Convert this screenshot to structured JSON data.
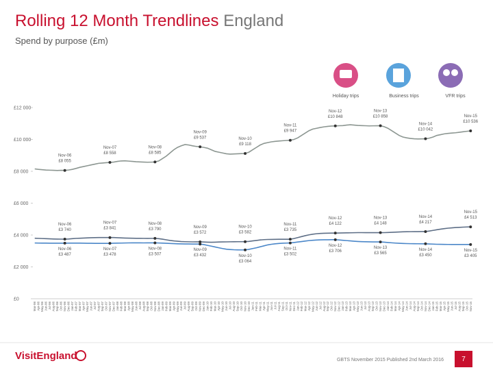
{
  "chart_data": {
    "type": "line",
    "title": "Rolling 12 Month Trendlines",
    "region": "England",
    "subtitle": "Spend by purpose (£m)",
    "categories": [
      "Mar-06",
      "Apr-06",
      "May-06",
      "Jun-06",
      "Jul-06",
      "Aug-06",
      "Sep-06",
      "Oct-06",
      "Nov-06",
      "Dec-06",
      "Jan-07",
      "Feb-07",
      "Mar-07",
      "Apr-07",
      "May-07",
      "Jun-07",
      "Jul-07",
      "Aug-07",
      "Sep-07",
      "Oct-07",
      "Nov-07",
      "Dec-07",
      "Jan-08",
      "Feb-08",
      "Mar-08",
      "Apr-08",
      "May-08",
      "Jun-08",
      "Jul-08",
      "Aug-08",
      "Sep-08",
      "Oct-08",
      "Nov-08",
      "Dec-08",
      "Jan-09",
      "Feb-09",
      "Mar-09",
      "Apr-09",
      "May-09",
      "Jun-09",
      "Jul-09",
      "Aug-09",
      "Sep-09",
      "Oct-09",
      "Nov-09",
      "Dec-09",
      "Jan-10",
      "Feb-10",
      "Mar-10",
      "Apr-10",
      "May-10",
      "Jun-10",
      "Jul-10",
      "Aug-10",
      "Sep-10",
      "Oct-10",
      "Nov-10",
      "Dec-10",
      "Jan-11",
      "Feb-11",
      "Mar-11",
      "Apr-11",
      "May-11",
      "Jun-11",
      "Jul-11",
      "Aug-11",
      "Sep-11",
      "Oct-11",
      "Nov-11",
      "Dec-11",
      "Jan-12",
      "Feb-12",
      "Mar-12",
      "Apr-12",
      "May-12",
      "Jun-12",
      "Jul-12",
      "Aug-12",
      "Sep-12",
      "Oct-12",
      "Nov-12",
      "Dec-12",
      "Jan-13",
      "Feb-13",
      "Mar-13",
      "Apr-13",
      "May-13",
      "Jun-13",
      "Jul-13",
      "Aug-13",
      "Sep-13",
      "Oct-13",
      "Nov-13",
      "Dec-13",
      "Jan-14",
      "Feb-14",
      "Mar-14",
      "Apr-14",
      "May-14",
      "Jun-14",
      "Jul-14",
      "Aug-14",
      "Sep-14",
      "Oct-14",
      "Nov-14",
      "Dec-14",
      "Jan-15",
      "Feb-15",
      "Mar-15",
      "Apr-15",
      "May-15",
      "Jun-15",
      "Jul-15",
      "Aug-15",
      "Sep-15",
      "Oct-15",
      "Nov-15"
    ],
    "series": [
      {
        "name": "Holiday trips",
        "color": "#8c9691",
        "label_position": "above",
        "values": [
          8150,
          8120,
          8100,
          8080,
          8070,
          8060,
          8050,
          8060,
          8055,
          8080,
          8120,
          8180,
          8250,
          8300,
          8350,
          8400,
          8450,
          8500,
          8520,
          8540,
          8558,
          8580,
          8620,
          8650,
          8660,
          8640,
          8620,
          8600,
          8590,
          8580,
          8570,
          8575,
          8585,
          8650,
          8800,
          8950,
          9150,
          9350,
          9500,
          9600,
          9680,
          9650,
          9600,
          9560,
          9537,
          9500,
          9450,
          9350,
          9250,
          9200,
          9150,
          9100,
          9080,
          9090,
          9100,
          9110,
          9118,
          9200,
          9350,
          9500,
          9650,
          9750,
          9800,
          9850,
          9880,
          9900,
          9920,
          9935,
          9947,
          10000,
          10100,
          10250,
          10400,
          10550,
          10650,
          10700,
          10750,
          10790,
          10820,
          10840,
          10848,
          10860,
          10870,
          10900,
          10920,
          10900,
          10880,
          10870,
          10860,
          10850,
          10855,
          10860,
          10858,
          10800,
          10700,
          10550,
          10400,
          10250,
          10150,
          10100,
          10060,
          10040,
          10030,
          10035,
          10042,
          10080,
          10150,
          10250,
          10300,
          10350,
          10380,
          10400,
          10420,
          10450,
          10480,
          10510,
          10536
        ],
        "annotations": [
          {
            "x": "Nov-06",
            "value": 8055,
            "value_label": "£8 055"
          },
          {
            "x": "Nov-07",
            "value": 8558,
            "value_label": "£8 558"
          },
          {
            "x": "Nov-08",
            "value": 8585,
            "value_label": "£8 585"
          },
          {
            "x": "Nov-09",
            "value": 9537,
            "value_label": "£9 537"
          },
          {
            "x": "Nov-10",
            "value": 9118,
            "value_label": "£9 118"
          },
          {
            "x": "Nov-11",
            "value": 9947,
            "value_label": "£9 947"
          },
          {
            "x": "Nov-12",
            "value": 10848,
            "value_label": "£10 848"
          },
          {
            "x": "Nov-13",
            "value": 10858,
            "value_label": "£10 858"
          },
          {
            "x": "Nov-14",
            "value": 10042,
            "value_label": "£10 042"
          },
          {
            "x": "Nov-15",
            "value": 10536,
            "value_label": "£10 536"
          }
        ]
      },
      {
        "name": "Business trips",
        "color": "#4a86c8",
        "label_position": "below",
        "values": [
          3500,
          3495,
          3490,
          3490,
          3488,
          3488,
          3487,
          3487,
          3487,
          3490,
          3492,
          3495,
          3490,
          3485,
          3482,
          3480,
          3478,
          3477,
          3478,
          3478,
          3478,
          3485,
          3490,
          3495,
          3500,
          3505,
          3508,
          3510,
          3508,
          3506,
          3507,
          3507,
          3507,
          3500,
          3490,
          3480,
          3470,
          3460,
          3450,
          3445,
          3440,
          3436,
          3434,
          3433,
          3432,
          3400,
          3350,
          3300,
          3250,
          3200,
          3150,
          3110,
          3090,
          3075,
          3068,
          3065,
          3064,
          3100,
          3150,
          3200,
          3260,
          3320,
          3380,
          3420,
          3450,
          3470,
          3485,
          3495,
          3502,
          3530,
          3560,
          3590,
          3620,
          3650,
          3670,
          3685,
          3695,
          3700,
          3703,
          3705,
          3706,
          3690,
          3670,
          3650,
          3630,
          3610,
          3595,
          3585,
          3578,
          3572,
          3568,
          3566,
          3565,
          3550,
          3530,
          3510,
          3495,
          3480,
          3470,
          3462,
          3457,
          3453,
          3451,
          3450,
          3450,
          3440,
          3430,
          3420,
          3415,
          3410,
          3408,
          3406,
          3405,
          3405,
          3405,
          3405,
          3405
        ],
        "annotations": [
          {
            "x": "Nov-06",
            "value": 3487,
            "value_label": "£3 487"
          },
          {
            "x": "Nov-07",
            "value": 3478,
            "value_label": "£3 478"
          },
          {
            "x": "Nov-08",
            "value": 3507,
            "value_label": "£3 507"
          },
          {
            "x": "Nov-09",
            "value": 3432,
            "value_label": "£3 432"
          },
          {
            "x": "Nov-10",
            "value": 3064,
            "value_label": "£3 064"
          },
          {
            "x": "Nov-11",
            "value": 3502,
            "value_label": "£3 502"
          },
          {
            "x": "Nov-12",
            "value": 3706,
            "value_label": "£3 706"
          },
          {
            "x": "Nov-13",
            "value": 3565,
            "value_label": "£3 565"
          },
          {
            "x": "Nov-14",
            "value": 3450,
            "value_label": "£3 450"
          },
          {
            "x": "Nov-15",
            "value": 3405,
            "value_label": "£3 405"
          }
        ]
      },
      {
        "name": "VFR trips",
        "color": "#5d6e86",
        "label_position": "above",
        "values": [
          3800,
          3790,
          3780,
          3770,
          3760,
          3750,
          3745,
          3742,
          3740,
          3750,
          3770,
          3790,
          3800,
          3810,
          3820,
          3830,
          3835,
          3840,
          3842,
          3840,
          3841,
          3840,
          3830,
          3820,
          3810,
          3805,
          3800,
          3795,
          3792,
          3790,
          3788,
          3790,
          3790,
          3770,
          3740,
          3700,
          3660,
          3630,
          3610,
          3590,
          3580,
          3575,
          3570,
          3571,
          3572,
          3560,
          3550,
          3545,
          3550,
          3560,
          3565,
          3570,
          3575,
          3578,
          3580,
          3581,
          3582,
          3600,
          3630,
          3660,
          3690,
          3710,
          3720,
          3725,
          3730,
          3732,
          3734,
          3735,
          3735,
          3780,
          3840,
          3900,
          3960,
          4010,
          4050,
          4080,
          4100,
          4110,
          4115,
          4120,
          4122,
          4125,
          4130,
          4135,
          4140,
          4145,
          4150,
          4150,
          4148,
          4146,
          4147,
          4148,
          4148,
          4150,
          4160,
          4170,
          4180,
          4190,
          4200,
          4205,
          4210,
          4212,
          4214,
          4216,
          4217,
          4250,
          4290,
          4330,
          4370,
          4400,
          4430,
          4450,
          4470,
          4480,
          4495,
          4505,
          4513
        ],
        "annotations": [
          {
            "x": "Nov-06",
            "value": 3740,
            "value_label": "£3 740"
          },
          {
            "x": "Nov-07",
            "value": 3841,
            "value_label": "£3 841"
          },
          {
            "x": "Nov-08",
            "value": 3790,
            "value_label": "£3 790"
          },
          {
            "x": "Nov-09",
            "value": 3572,
            "value_label": "£3 572"
          },
          {
            "x": "Nov-10",
            "value": 3582,
            "value_label": "£3 582"
          },
          {
            "x": "Nov-11",
            "value": 3735,
            "value_label": "£3 735"
          },
          {
            "x": "Nov-12",
            "value": 4122,
            "value_label": "£4 122"
          },
          {
            "x": "Nov-13",
            "value": 4148,
            "value_label": "£4 148"
          },
          {
            "x": "Nov-14",
            "value": 4217,
            "value_label": "£4 217"
          },
          {
            "x": "Nov-15",
            "value": 4513,
            "value_label": "£4 513"
          }
        ]
      }
    ],
    "ylim": [
      0,
      12000
    ],
    "yticks": [
      {
        "value": 0,
        "label": "£0"
      },
      {
        "value": 2000,
        "label": "£2 000"
      },
      {
        "value": 4000,
        "label": "£4 000"
      },
      {
        "value": 6000,
        "label": "£6 000"
      },
      {
        "value": 8000,
        "label": "£8 000"
      },
      {
        "value": 10000,
        "label": "£10 000"
      },
      {
        "value": 12000,
        "label": "£12 000"
      }
    ],
    "grid": false
  },
  "footer": {
    "brand": "VisitEngland",
    "source": "GBTS November 2015 Published 2nd March 2016",
    "page": "7"
  }
}
